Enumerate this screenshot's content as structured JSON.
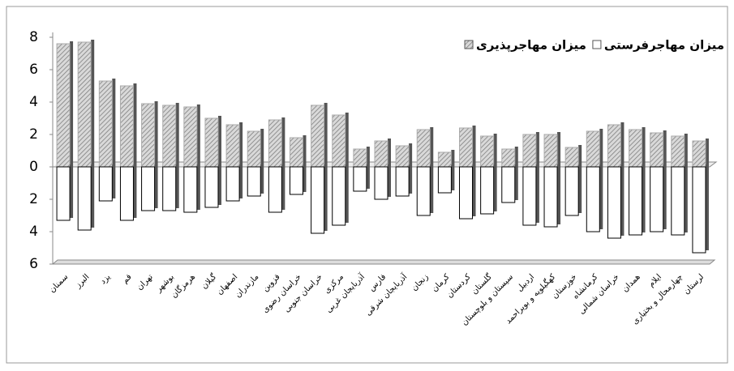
{
  "chart_data": {
    "type": "bar",
    "categories": [
      "سمنان",
      "البرز",
      "یزد",
      "قم",
      "تهران",
      "بوشهر",
      "هرمزگان",
      "گیلان",
      "اصفهان",
      "مازندران",
      "قزوین",
      "خراسان رضوی",
      "خراسان جنوبی",
      "مرکزی",
      "آذربایجان غربی",
      "فارس",
      "آذربایجان شرقی",
      "زنجان",
      "کرمان",
      "کردستان",
      "گلستان",
      "سیستان و بلوچستان",
      "اردبیل",
      "کهگیلویه و بویراحمد",
      "خوزستان",
      "کرمانشاه",
      "خراسان شمالی",
      "همدان",
      "ایلام",
      "چهارمحال و بختیاری",
      "لرستان"
    ],
    "series": [
      {
        "name": "میزان مهاجرپذیری",
        "color": "#bdbdbd",
        "values": [
          7.6,
          7.7,
          5.3,
          5.0,
          3.9,
          3.8,
          3.7,
          3.0,
          2.6,
          2.2,
          2.9,
          1.8,
          3.8,
          3.2,
          1.1,
          1.6,
          1.3,
          2.3,
          0.9,
          2.4,
          1.9,
          1.1,
          2.0,
          2.0,
          1.2,
          2.2,
          2.6,
          2.3,
          2.1,
          1.9,
          1.6
        ]
      },
      {
        "name": "میزان مهاجرفرستی",
        "color": "#ffffff",
        "values": [
          -3.3,
          -3.9,
          -2.1,
          -3.3,
          -2.7,
          -2.7,
          -2.8,
          -2.5,
          -2.1,
          -1.8,
          -2.8,
          -1.7,
          -4.1,
          -3.6,
          -1.5,
          -2.0,
          -1.8,
          -3.0,
          -1.6,
          -3.2,
          -2.9,
          -2.2,
          -3.6,
          -3.7,
          -3.0,
          -4.0,
          -4.4,
          -4.2,
          -4.0,
          -4.2,
          -5.3
        ]
      }
    ],
    "ylim": [
      -6,
      8
    ],
    "yticks": [
      8,
      6,
      4,
      2,
      0,
      {
        "value": -2,
        "label": "2"
      },
      {
        "value": -4,
        "label": "4"
      },
      {
        "value": -6,
        "label": "6"
      }
    ],
    "grid": false
  }
}
